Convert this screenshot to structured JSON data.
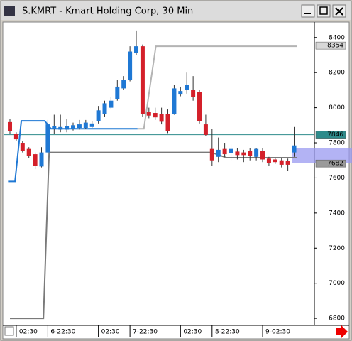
{
  "chart_data": {
    "type": "candlestick",
    "title": "S.KMRT - Kmart Holding Corp, 30 Min",
    "up_color": "#1f78d4",
    "down_color": "#d4202a",
    "open": [
      7918,
      7850,
      7800,
      7765,
      7735,
      7665,
      7745,
      7880,
      7875,
      7875,
      7880,
      7885,
      7885,
      7890,
      7925,
      7965,
      8000,
      8050,
      8110,
      8160,
      8310,
      8350,
      7975,
      7970,
      7965,
      7965,
      7965,
      8075,
      8100,
      8100,
      8090,
      7905,
      7765,
      7720,
      7765,
      7740,
      7750,
      7745,
      7755,
      7720,
      7755,
      7710,
      7705,
      7700,
      7695,
      7745
    ],
    "high": [
      7935,
      7860,
      7810,
      7775,
      7745,
      7775,
      7930,
      7960,
      7960,
      7935,
      7915,
      7930,
      7930,
      7925,
      8010,
      8040,
      8060,
      8160,
      8180,
      8350,
      8440,
      8360,
      8000,
      8000,
      8000,
      7990,
      8130,
      8120,
      8200,
      8180,
      8100,
      7960,
      7880,
      7830,
      7800,
      7790,
      7770,
      7760,
      7770,
      7770,
      7770,
      7720,
      7715,
      7715,
      7710,
      7890
    ],
    "low": [
      7850,
      7810,
      7745,
      7715,
      7650,
      7660,
      7740,
      7850,
      7860,
      7860,
      7870,
      7875,
      7880,
      7885,
      7910,
      7950,
      7995,
      8040,
      8100,
      8150,
      8300,
      7950,
      7940,
      7930,
      7905,
      7855,
      7960,
      8065,
      8080,
      8040,
      7910,
      7840,
      7670,
      7690,
      7720,
      7700,
      7705,
      7690,
      7700,
      7700,
      7690,
      7670,
      7680,
      7660,
      7640,
      7720
    ],
    "close": [
      7865,
      7820,
      7755,
      7725,
      7670,
      7745,
      7905,
      7895,
      7890,
      7895,
      7900,
      7905,
      7915,
      7910,
      7985,
      8025,
      8040,
      8120,
      8160,
      8320,
      8350,
      7965,
      7955,
      7945,
      7920,
      7865,
      8110,
      8095,
      8130,
      8060,
      7925,
      7845,
      7700,
      7760,
      7735,
      7765,
      7730,
      7730,
      7725,
      7765,
      7705,
      7685,
      7690,
      7675,
      7675,
      7785
    ],
    "lines": [
      {
        "color": "#1f78d4",
        "x": [
          -0.3,
          0.8,
          1.8,
          5.5,
          6.5,
          20.2
        ],
        "values": [
          7580,
          7580,
          7925,
          7925,
          7880,
          7880
        ]
      },
      {
        "color": "#b4b4b4",
        "x": [
          20.2,
          21.2,
          23.1,
          45.5
        ],
        "values": [
          7880,
          7880,
          8350,
          8350
        ]
      },
      {
        "color": "#7a7a7a",
        "x": [
          0,
          5.3,
          6.2,
          31.9,
          34.3,
          45.5
        ],
        "values": [
          6800,
          6800,
          7745,
          7745,
          7715,
          7715
        ]
      }
    ],
    "hline": {
      "value": 7846,
      "color": "#2e8b8b"
    },
    "price_tags": [
      {
        "value": 8354,
        "color": "#d8d8d8"
      },
      {
        "value": 7846,
        "color": "#2e8b8b"
      },
      {
        "value": 7682,
        "color": "#9a9a9a"
      }
    ],
    "xlim": [
      -0.9,
      48.2
    ],
    "ylim": [
      6760,
      8480
    ],
    "yticks": [
      6800,
      7000,
      7200,
      7400,
      7600,
      7800,
      8000,
      8200,
      8400
    ],
    "xticks": [
      {
        "value": 1,
        "label": "02:30"
      },
      {
        "value": 6,
        "label": "6-22:30"
      },
      {
        "value": 14,
        "label": "02:30"
      },
      {
        "value": 19,
        "label": "7-22:30"
      },
      {
        "value": 27,
        "label": "02:30"
      },
      {
        "value": 32,
        "label": "8-22:30"
      },
      {
        "value": 40,
        "label": "9-02:30"
      }
    ]
  }
}
